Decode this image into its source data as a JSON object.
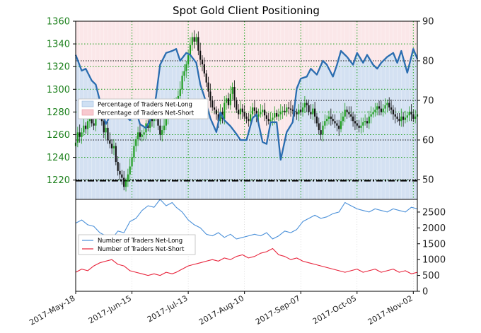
{
  "chart_data": {
    "title": "Spot Gold Client Positioning",
    "x_tick_labels": [
      "2017-May-18",
      "2017-Jun-15",
      "2017-Jul-13",
      "2017-Aug-10",
      "2017-Sep-07",
      "2017-Oct-05",
      "2017-Nov-02"
    ],
    "colors": {
      "net_long": "#2a6db0",
      "net_short": "#e8223a",
      "long_fill": "#cfe0f3",
      "short_fill": "#f7c9cf",
      "candle_up": "#1f9e1f",
      "candle_down": "#111111",
      "grid": "#1a9e1a",
      "tick_price": "#1a7f1a"
    },
    "panels": [
      {
        "id": "price_and_percentage",
        "type": "candlestick+line",
        "y_left": {
          "range": [
            1203,
            1360
          ],
          "ticks": [
            1220,
            1240,
            1260,
            1280,
            1300,
            1320,
            1340,
            1360
          ],
          "label": ""
        },
        "y_right": {
          "range": [
            45,
            90
          ],
          "ticks": [
            50,
            60,
            70,
            80,
            90
          ],
          "label": ""
        },
        "reference_line": {
          "axis": "right",
          "value": 49.7,
          "style": "dash-dot"
        },
        "legend": {
          "position": "center-left",
          "entries": [
            "Percentage of Traders Net-Long",
            "Percentage of Traders Net-Short"
          ]
        },
        "series": [
          {
            "name": "Percentage of Traders Net-Long",
            "axis": "right",
            "x": [
              0,
              3,
              5,
              8,
              10,
              13,
              15,
              18,
              20,
              22,
              25,
              27,
              30,
              32,
              35,
              38,
              40,
              42,
              45,
              48,
              50,
              52,
              55,
              57,
              60,
              62,
              64,
              67,
              70,
              72,
              74,
              77,
              80,
              82,
              85,
              88,
              90,
              93,
              95,
              97,
              100,
              102,
              105,
              108,
              110,
              112,
              115,
              117,
              120,
              123,
              125,
              128,
              130,
              132,
              135,
              138,
              140,
              143,
              145,
              148,
              150,
              152,
              155,
              158,
              160,
              162,
              165,
              168,
              170
            ],
            "values": [
              81.5,
              77.5,
              78,
              75,
              74,
              68,
              64,
              67,
              70,
              68.5,
              66,
              65,
              67.5,
              64,
              63,
              66,
              71,
              79,
              82,
              82.5,
              83,
              80,
              82,
              81.5,
              79.5,
              74,
              71,
              65.5,
              62,
              67,
              65,
              63.5,
              61.5,
              60,
              60,
              65.5,
              66.5,
              59.5,
              59,
              64.5,
              64.5,
              55,
              62,
              64.5,
              73,
              75.5,
              76,
              78,
              76.5,
              80,
              79,
              76,
              79,
              82.5,
              81,
              79,
              82,
              79.5,
              81.5,
              79,
              78,
              79.5,
              81,
              82,
              79.5,
              82.5,
              77,
              83,
              80.5
            ]
          }
        ],
        "candles": {
          "axis": "left",
          "x_step": 1,
          "closes": [
            1253,
            1262,
            1258,
            1262,
            1268,
            1265,
            1272,
            1276,
            1270,
            1268,
            1284,
            1280,
            1276,
            1272,
            1262,
            1266,
            1255,
            1252,
            1248,
            1250,
            1236,
            1228,
            1225,
            1222,
            1214,
            1219,
            1225,
            1232,
            1240,
            1250,
            1256,
            1262,
            1258,
            1260,
            1262,
            1270,
            1266,
            1274,
            1272,
            1280,
            1275,
            1268,
            1260,
            1264,
            1268,
            1274,
            1280,
            1282,
            1284,
            1286,
            1290,
            1294,
            1300,
            1312,
            1316,
            1322,
            1330,
            1339,
            1346,
            1342,
            1346,
            1334,
            1326,
            1322,
            1314,
            1306,
            1298,
            1290,
            1284,
            1282,
            1278,
            1272,
            1280,
            1274,
            1288,
            1292,
            1286,
            1296,
            1302,
            1290,
            1282,
            1278,
            1283,
            1280,
            1276,
            1274,
            1272,
            1278,
            1284,
            1281,
            1276,
            1278,
            1280,
            1282,
            1277,
            1274,
            1272,
            1273,
            1275,
            1279,
            1276,
            1278,
            1280,
            1281,
            1280,
            1284,
            1283,
            1282,
            1281,
            1280,
            1278,
            1282,
            1280,
            1284,
            1288,
            1286,
            1280,
            1278,
            1283,
            1276,
            1270,
            1264,
            1260,
            1268,
            1272,
            1274,
            1276,
            1274,
            1272,
            1270,
            1268,
            1265,
            1272,
            1276,
            1282,
            1280,
            1278,
            1276,
            1272,
            1270,
            1268,
            1266,
            1268,
            1271,
            1272,
            1270,
            1276,
            1278,
            1280,
            1282,
            1285,
            1283,
            1280,
            1283,
            1286,
            1288,
            1284,
            1282,
            1278,
            1276,
            1274,
            1272,
            1276,
            1273,
            1275,
            1277,
            1280,
            1278,
            1274,
            1276,
            1278
          ]
        }
      },
      {
        "id": "trader_counts",
        "type": "line",
        "y_right": {
          "range": [
            0,
            2900
          ],
          "ticks": [
            0,
            500,
            1000,
            1500,
            2000,
            2500
          ],
          "label": ""
        },
        "legend": {
          "position": "center-left",
          "entries": [
            "Number of Traders Net-Long",
            "Number of Traders Net-Short"
          ]
        },
        "series": [
          {
            "name": "Number of Traders Net-Long",
            "color_key": "net_long",
            "x": [
              0,
              3,
              6,
              9,
              12,
              15,
              18,
              21,
              24,
              27,
              30,
              33,
              36,
              39,
              42,
              45,
              48,
              50,
              53,
              56,
              59,
              62,
              65,
              68,
              71,
              74,
              77,
              80,
              83,
              86,
              89,
              92,
              95,
              98,
              101,
              104,
              107,
              110,
              113,
              116,
              119,
              122,
              125,
              128,
              131,
              134,
              137,
              140,
              143,
              146,
              149,
              152,
              155,
              158,
              161,
              164,
              167,
              170
            ],
            "values": [
              2150,
              2250,
              2100,
              2050,
              1850,
              1750,
              1650,
              1900,
              1850,
              2200,
              2300,
              2550,
              2700,
              2650,
              2900,
              2700,
              2800,
              2650,
              2500,
              2250,
              2100,
              2000,
              1800,
              1750,
              1850,
              1700,
              1800,
              1650,
              1700,
              1750,
              1800,
              1750,
              1850,
              1650,
              1750,
              1900,
              1850,
              1950,
              2200,
              2300,
              2400,
              2300,
              2350,
              2450,
              2500,
              2800,
              2700,
              2600,
              2550,
              2500,
              2600,
              2550,
              2500,
              2600,
              2550,
              2500,
              2650,
              2600
            ]
          },
          {
            "name": "Number of Traders Net-Short",
            "color_key": "net_short",
            "x": [
              0,
              3,
              6,
              9,
              12,
              15,
              18,
              21,
              24,
              27,
              30,
              33,
              36,
              39,
              42,
              45,
              48,
              50,
              53,
              56,
              59,
              62,
              65,
              68,
              71,
              74,
              77,
              80,
              83,
              86,
              89,
              92,
              95,
              98,
              101,
              104,
              107,
              110,
              113,
              116,
              119,
              122,
              125,
              128,
              131,
              134,
              137,
              140,
              143,
              146,
              149,
              152,
              155,
              158,
              161,
              164,
              167,
              170
            ],
            "values": [
              600,
              700,
              650,
              800,
              900,
              950,
              1000,
              850,
              800,
              650,
              600,
              550,
              500,
              550,
              500,
              600,
              550,
              600,
              700,
              800,
              850,
              900,
              950,
              1000,
              950,
              1050,
              1000,
              1100,
              1150,
              1050,
              1100,
              1200,
              1250,
              1350,
              1150,
              1100,
              1000,
              1050,
              950,
              900,
              850,
              800,
              750,
              700,
              650,
              600,
              650,
              700,
              600,
              650,
              700,
              600,
              650,
              700,
              600,
              650,
              550,
              600
            ]
          }
        ]
      }
    ]
  }
}
